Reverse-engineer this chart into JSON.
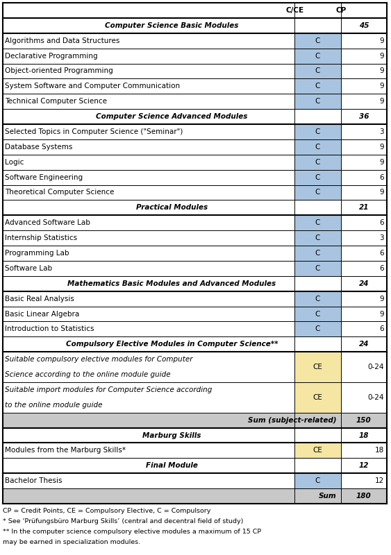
{
  "blue_color": "#a8c4e0",
  "yellow_color": "#f5e6a3",
  "gray_color": "#c8c8c8",
  "rows": [
    {
      "type": "header",
      "col0": "",
      "col1": "C/CE",
      "col2": "CP"
    },
    {
      "type": "section",
      "col0": "Computer Science Basic Modules",
      "col1": "",
      "col2": "45"
    },
    {
      "type": "data",
      "col0": "Algorithms and Data Structures",
      "col1": "C",
      "col2": "9",
      "c_color": "blue"
    },
    {
      "type": "data",
      "col0": "Declarative Programming",
      "col1": "C",
      "col2": "9",
      "c_color": "blue"
    },
    {
      "type": "data",
      "col0": "Object-oriented Programming",
      "col1": "C",
      "col2": "9",
      "c_color": "blue"
    },
    {
      "type": "data",
      "col0": "System Software and Computer Communication",
      "col1": "C",
      "col2": "9",
      "c_color": "blue"
    },
    {
      "type": "data",
      "col0": "Technical Computer Science",
      "col1": "C",
      "col2": "9",
      "c_color": "blue"
    },
    {
      "type": "section",
      "col0": "Computer Science Advanced Modules",
      "col1": "",
      "col2": "36"
    },
    {
      "type": "data",
      "col0": "Selected Topics in Computer Science (\"Seminar\")",
      "col1": "C",
      "col2": "3",
      "c_color": "blue"
    },
    {
      "type": "data",
      "col0": "Database Systems",
      "col1": "C",
      "col2": "9",
      "c_color": "blue"
    },
    {
      "type": "data",
      "col0": "Logic",
      "col1": "C",
      "col2": "9",
      "c_color": "blue"
    },
    {
      "type": "data",
      "col0": "Software Engineering",
      "col1": "C",
      "col2": "6",
      "c_color": "blue"
    },
    {
      "type": "data",
      "col0": "Theoretical Computer Science",
      "col1": "C",
      "col2": "9",
      "c_color": "blue"
    },
    {
      "type": "section",
      "col0": "Practical Modules",
      "col1": "",
      "col2": "21"
    },
    {
      "type": "data",
      "col0": "Advanced Software Lab",
      "col1": "C",
      "col2": "6",
      "c_color": "blue"
    },
    {
      "type": "data",
      "col0": "Internship Statistics",
      "col1": "C",
      "col2": "3",
      "c_color": "blue"
    },
    {
      "type": "data",
      "col0": "Programming Lab",
      "col1": "C",
      "col2": "6",
      "c_color": "blue"
    },
    {
      "type": "data",
      "col0": "Software Lab",
      "col1": "C",
      "col2": "6",
      "c_color": "blue"
    },
    {
      "type": "section",
      "col0": "Mathematics Basic Modules and Advanced Modules",
      "col1": "",
      "col2": "24"
    },
    {
      "type": "data",
      "col0": "Basic Real Analysis",
      "col1": "C",
      "col2": "9",
      "c_color": "blue"
    },
    {
      "type": "data",
      "col0": "Basic Linear Algebra",
      "col1": "C",
      "col2": "9",
      "c_color": "blue"
    },
    {
      "type": "data",
      "col0": "Introduction to Statistics",
      "col1": "C",
      "col2": "6",
      "c_color": "blue"
    },
    {
      "type": "section",
      "col0": "Compulsory Elective Modules in Computer Science**",
      "col1": "",
      "col2": "24"
    },
    {
      "type": "data2",
      "col0": "Suitable compulsory elective modules for Computer\nScience according to the online module guide",
      "col1": "CE",
      "col2": "0-24",
      "c_color": "yellow"
    },
    {
      "type": "data2",
      "col0": "Suitable import modules for Computer Science according\nto the online module guide",
      "col1": "CE",
      "col2": "0-24",
      "c_color": "yellow"
    },
    {
      "type": "sum",
      "col0": "Sum (subject-related)",
      "col1": "",
      "col2": "150"
    },
    {
      "type": "section",
      "col0": "Marburg Skills",
      "col1": "",
      "col2": "18"
    },
    {
      "type": "data",
      "col0": "Modules from the Marburg Skills*",
      "col1": "CE",
      "col2": "18",
      "c_color": "yellow"
    },
    {
      "type": "section",
      "col0": "Final Module",
      "col1": "",
      "col2": "12"
    },
    {
      "type": "data",
      "col0": "Bachelor Thesis",
      "col1": "C",
      "col2": "12",
      "c_color": "blue"
    },
    {
      "type": "sum",
      "col0": "Sum",
      "col1": "",
      "col2": "180"
    }
  ],
  "footnotes": [
    "CP = Credit Points, CE = Compulsory Elective, C = Compulsory",
    "* See ‘Prüfungsbüro Marburg Skills’ (central and decentral field of study)",
    "** In the computer science compulsory elective modules a maximum of 15 CP",
    "may be earned in specialization modules."
  ]
}
